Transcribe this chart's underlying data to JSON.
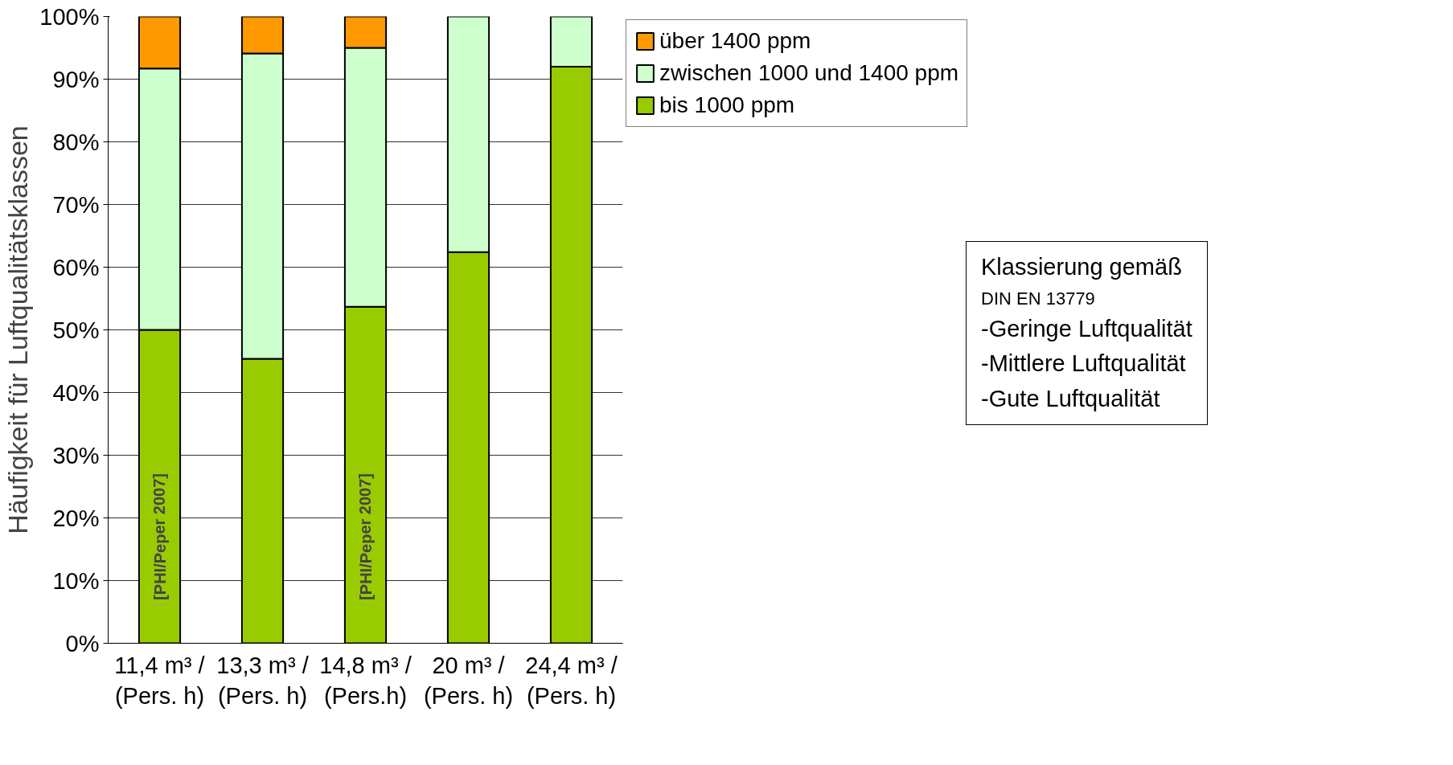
{
  "chart_data": {
    "type": "bar",
    "stacked": true,
    "ylabel": "Häufigkeit für Luftqualitätsklassen",
    "categories": [
      "11,4 m³ /\n(Pers. h)",
      "13,3 m³ /\n(Pers. h)",
      "14,8 m³ /\n(Pers.h)",
      "20 m³ /\n(Pers. h)",
      "24,4 m³ /\n(Pers. h)"
    ],
    "series": [
      {
        "name": "bis 1000 ppm",
        "color": "#99cc00",
        "values": [
          50,
          45.4,
          53.7,
          62.4,
          92.0
        ]
      },
      {
        "name": "zwischen 1000 und 1400 ppm",
        "color": "#ccffcc",
        "values": [
          41.7,
          48.7,
          41.3,
          37.6,
          8.0
        ]
      },
      {
        "name": "über 1400 ppm",
        "color": "#ff9900",
        "values": [
          8.3,
          5.9,
          5.0,
          0,
          0
        ]
      }
    ],
    "ylim": [
      0,
      100
    ],
    "yticks": [
      {
        "value": 0,
        "label": "0%"
      },
      {
        "value": 10,
        "label": "10%"
      },
      {
        "value": 20,
        "label": "20%"
      },
      {
        "value": 30,
        "label": "30%"
      },
      {
        "value": 40,
        "label": "40%"
      },
      {
        "value": 50,
        "label": "50%"
      },
      {
        "value": 60,
        "label": "60%"
      },
      {
        "value": 70,
        "label": "70%"
      },
      {
        "value": 80,
        "label": "80%"
      },
      {
        "value": 90,
        "label": "90%"
      },
      {
        "value": 100,
        "label": "100%"
      }
    ],
    "grid": "y",
    "legend": "right",
    "annotations": [
      "[PHI/Peper 2007]",
      "[PHI/Peper 2007]",
      "Klassierung gemäß",
      "DIN EN 13779",
      "-Geringe Luftqualität",
      "-Mittlere Luftqualität",
      "-Gute Luftqualität"
    ]
  }
}
